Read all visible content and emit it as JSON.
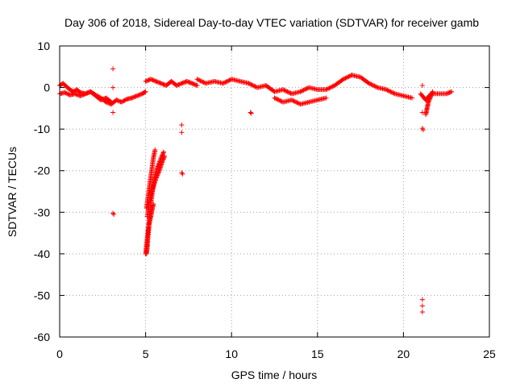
{
  "chart_data": {
    "type": "scatter",
    "title": "Day 306 of 2018, Sidereal Day-to-day VTEC variation (SDTVAR) for receiver gamb",
    "xlabel": "GPS time / hours",
    "ylabel": "SDTVAR / TECUs",
    "xlim": [
      0,
      25
    ],
    "ylim": [
      -60,
      10
    ],
    "xticks": [
      0,
      5,
      10,
      15,
      20,
      25
    ],
    "yticks": [
      -60,
      -50,
      -40,
      -30,
      -20,
      -10,
      0,
      10
    ],
    "grid": true,
    "marker": "+",
    "color": "#ff0000",
    "series": [
      {
        "name": "SDTVAR",
        "segments": [
          {
            "x": [
              0.0,
              0.2,
              0.4,
              0.6,
              0.8,
              1.0,
              1.2,
              1.5,
              1.8,
              2.1,
              2.4,
              2.7,
              3.0
            ],
            "y": [
              0.5,
              1.0,
              0.2,
              -0.5,
              -1.0,
              -0.5,
              -1.2,
              -1.5,
              -1.0,
              -1.8,
              -2.5,
              -3.5,
              -4.0
            ]
          },
          {
            "x": [
              0.0,
              0.3,
              0.6,
              0.9,
              1.2,
              1.5,
              1.8,
              2.1,
              2.4,
              2.7,
              3.0
            ],
            "y": [
              -1.5,
              -1.2,
              -1.8,
              -1.5,
              -2.0,
              -1.5,
              -1.0,
              -2.0,
              -3.0,
              -2.5,
              -3.5
            ]
          },
          {
            "x": [
              3.0,
              3.3,
              3.6,
              3.9,
              4.2,
              4.5,
              4.8,
              5.0
            ],
            "y": [
              -4.0,
              -3.0,
              -3.5,
              -2.8,
              -2.5,
              -2.0,
              -1.5,
              -1.0
            ]
          },
          {
            "x": [
              5.0,
              5.3,
              5.6,
              5.9,
              6.2,
              6.5,
              6.8,
              7.1,
              7.4,
              7.7,
              8.0
            ],
            "y": [
              1.5,
              2.0,
              1.5,
              1.0,
              0.5,
              1.5,
              0.5,
              1.0,
              1.5,
              1.0,
              0.5
            ]
          },
          {
            "x": [
              8.0,
              8.5,
              9.0,
              9.5,
              10.0,
              10.5,
              11.0
            ],
            "y": [
              2.0,
              1.0,
              1.5,
              1.0,
              2.0,
              1.5,
              1.0
            ]
          },
          {
            "x": [
              11.0,
              11.5,
              12.0,
              12.5,
              13.0,
              13.5,
              14.0,
              14.5,
              15.0,
              15.5,
              16.0,
              16.5,
              17.0
            ],
            "y": [
              1.0,
              0.0,
              0.5,
              -1.0,
              -0.5,
              -1.5,
              -1.0,
              0.0,
              -0.5,
              -0.5,
              0.5,
              2.0,
              3.0
            ]
          },
          {
            "x": [
              12.5,
              13.0,
              13.5,
              14.0,
              14.5,
              15.0,
              15.5
            ],
            "y": [
              -2.5,
              -3.5,
              -3.0,
              -4.0,
              -3.5,
              -3.0,
              -2.5
            ]
          },
          {
            "x": [
              17.0,
              17.5,
              18.0,
              18.5,
              19.0,
              19.5,
              20.0,
              20.5
            ],
            "y": [
              3.0,
              2.5,
              1.0,
              0.0,
              -0.5,
              -1.5,
              -2.0,
              -2.5
            ]
          },
          {
            "x": [
              21.0,
              21.3,
              21.6,
              21.9,
              22.2,
              22.5,
              22.8
            ],
            "y": [
              -1.5,
              -3.0,
              -1.5,
              -1.5,
              -1.5,
              -1.5,
              -1.0
            ]
          },
          {
            "x": [
              21.3,
              21.35,
              21.4,
              21.45,
              21.5,
              21.6,
              21.7
            ],
            "y": [
              -6.5,
              -5.5,
              -4.5,
              -3.5,
              -3.0,
              -2.0,
              -1.0
            ]
          },
          {
            "x": [
              5.0,
              5.1,
              5.2,
              5.3,
              5.4,
              5.5,
              5.7,
              5.9,
              6.05
            ],
            "y": [
              -40.0,
              -36.0,
              -32.0,
              -28.0,
              -25.0,
              -22.0,
              -19.0,
              -17.0,
              -15.5
            ]
          },
          {
            "x": [
              5.1,
              5.2,
              5.3,
              5.4,
              5.6,
              5.8,
              6.0,
              6.1
            ],
            "y": [
              -31.0,
              -28.0,
              -26.0,
              -24.5,
              -22.0,
              -20.0,
              -17.5,
              -16.5
            ]
          },
          {
            "x": [
              5.05,
              5.15,
              5.25,
              5.35,
              5.45,
              5.55
            ],
            "y": [
              -29.0,
              -26.0,
              -23.0,
              -20.0,
              -17.0,
              -15.0
            ]
          },
          {
            "x": [
              5.05,
              5.08,
              5.1,
              5.12,
              5.15,
              5.18,
              5.2,
              5.25,
              5.3,
              5.35,
              5.4,
              5.45
            ],
            "y": [
              -40.0,
              -39.0,
              -38.0,
              -37.0,
              -35.5,
              -34.0,
              -33.0,
              -32.0,
              -31.0,
              -30.0,
              -29.0,
              -28.0
            ]
          }
        ],
        "points": [
          {
            "x": 3.1,
            "y": 4.5
          },
          {
            "x": 3.1,
            "y": -6.0
          },
          {
            "x": 3.1,
            "y": 0.0
          },
          {
            "x": 3.1,
            "y": -30.2
          },
          {
            "x": 3.15,
            "y": -30.5
          },
          {
            "x": 7.1,
            "y": -9.0
          },
          {
            "x": 7.1,
            "y": -10.8
          },
          {
            "x": 7.1,
            "y": -20.5
          },
          {
            "x": 7.15,
            "y": -20.8
          },
          {
            "x": 11.1,
            "y": -6.0
          },
          {
            "x": 11.15,
            "y": -6.2
          },
          {
            "x": 21.1,
            "y": 0.5
          },
          {
            "x": 21.1,
            "y": -6.0
          },
          {
            "x": 21.1,
            "y": -9.8
          },
          {
            "x": 21.15,
            "y": -10.2
          },
          {
            "x": 21.1,
            "y": -51.0
          },
          {
            "x": 21.1,
            "y": -52.5
          },
          {
            "x": 21.1,
            "y": -54.0
          }
        ]
      }
    ]
  }
}
